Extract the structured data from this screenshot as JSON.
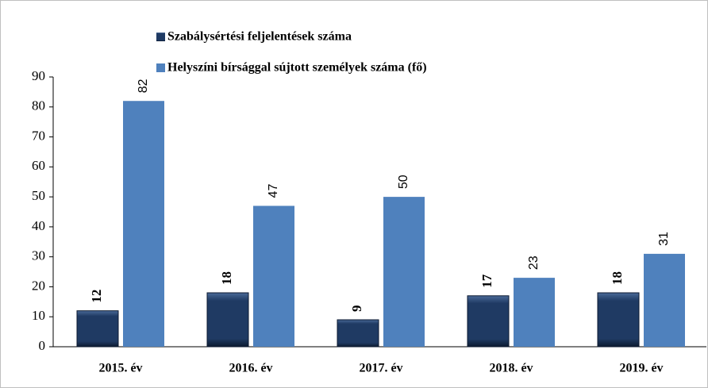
{
  "chart_data": {
    "type": "bar",
    "categories": [
      "2015. év",
      "2016. év",
      "2017. év",
      "2018. év",
      "2019. év"
    ],
    "series": [
      {
        "name": "Szabálysértési feljelentések száma",
        "color": "#1f3a63",
        "values": [
          12,
          18,
          9,
          17,
          18
        ]
      },
      {
        "name": "Helyszíni bírsággal sújtott személyek száma (fő)",
        "color": "#4f81bd",
        "values": [
          82,
          47,
          50,
          23,
          31
        ]
      }
    ],
    "ylim": [
      0,
      90
    ],
    "yticks": [
      0,
      10,
      20,
      30,
      40,
      50,
      60,
      70,
      80,
      90
    ],
    "grid": false,
    "legend": "top"
  }
}
